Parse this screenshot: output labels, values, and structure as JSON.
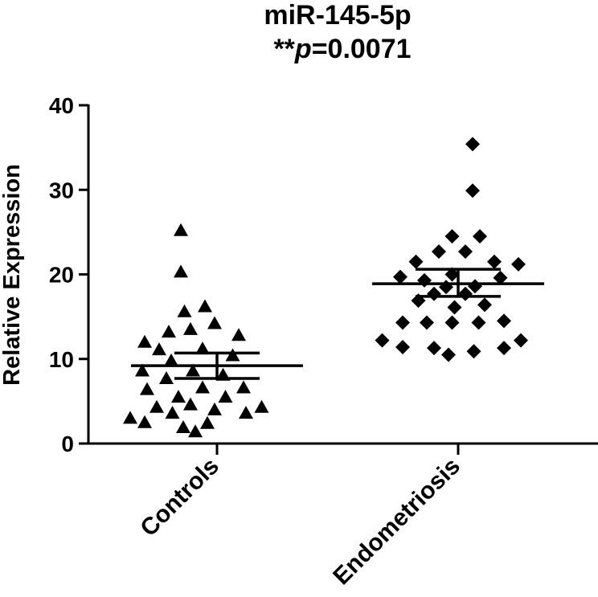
{
  "chart_data": {
    "type": "scatter",
    "title": "miR-145-5p",
    "subtitle": {
      "prefix": "**",
      "p_symbol": "p",
      "value_text": "=0.0071"
    },
    "xlabel": "",
    "ylabel": "Relative Expression",
    "ylim": [
      0,
      40
    ],
    "yticks": [
      0,
      10,
      20,
      30,
      40
    ],
    "grid": false,
    "legend": "none",
    "categories": [
      "Controls",
      "Endometriosis"
    ],
    "series": [
      {
        "name": "Controls",
        "marker": "triangle",
        "mean": 9.2,
        "sem_low": 7.7,
        "sem_high": 10.7,
        "points": [
          {
            "x": -0.3,
            "y": 25.2
          },
          {
            "x": -0.3,
            "y": 20.3
          },
          {
            "x": -0.1,
            "y": 16.2
          },
          {
            "x": -0.27,
            "y": 15.6
          },
          {
            "x": -0.4,
            "y": 13.2
          },
          {
            "x": -0.22,
            "y": 13.5
          },
          {
            "x": -0.02,
            "y": 14.2
          },
          {
            "x": 0.18,
            "y": 12.8
          },
          {
            "x": -0.6,
            "y": 12.0
          },
          {
            "x": -0.48,
            "y": 11.1
          },
          {
            "x": -0.12,
            "y": 11.2
          },
          {
            "x": 0.13,
            "y": 10.4
          },
          {
            "x": -0.38,
            "y": 9.8
          },
          {
            "x": -0.62,
            "y": 8.6
          },
          {
            "x": -0.2,
            "y": 8.6
          },
          {
            "x": 0.05,
            "y": 8.1
          },
          {
            "x": -0.42,
            "y": 7.7
          },
          {
            "x": -0.12,
            "y": 6.6
          },
          {
            "x": 0.22,
            "y": 6.6
          },
          {
            "x": -0.58,
            "y": 6.4
          },
          {
            "x": -0.32,
            "y": 5.5
          },
          {
            "x": 0.07,
            "y": 5.5
          },
          {
            "x": -0.22,
            "y": 4.6
          },
          {
            "x": -0.5,
            "y": 4.3
          },
          {
            "x": 0.37,
            "y": 4.3
          },
          {
            "x": -0.02,
            "y": 4.0
          },
          {
            "x": -0.37,
            "y": 3.6
          },
          {
            "x": 0.24,
            "y": 3.6
          },
          {
            "x": -0.72,
            "y": 3.0
          },
          {
            "x": -0.6,
            "y": 2.5
          },
          {
            "x": -0.08,
            "y": 2.4
          },
          {
            "x": -0.28,
            "y": 1.9
          },
          {
            "x": -0.18,
            "y": 1.4
          }
        ]
      },
      {
        "name": "Endometriosis",
        "marker": "diamond",
        "mean": 18.9,
        "sem_low": 17.4,
        "sem_high": 20.6,
        "points": [
          {
            "x": 0.12,
            "y": 35.4
          },
          {
            "x": 0.12,
            "y": 29.9
          },
          {
            "x": -0.05,
            "y": 24.5
          },
          {
            "x": 0.18,
            "y": 24.5
          },
          {
            "x": -0.16,
            "y": 22.7
          },
          {
            "x": 0.06,
            "y": 22.7
          },
          {
            "x": -0.35,
            "y": 21.5
          },
          {
            "x": 0.3,
            "y": 21.5
          },
          {
            "x": 0.5,
            "y": 21.2
          },
          {
            "x": -0.48,
            "y": 19.7
          },
          {
            "x": -0.05,
            "y": 20.0
          },
          {
            "x": 0.35,
            "y": 19.6
          },
          {
            "x": -0.28,
            "y": 19.3
          },
          {
            "x": -0.1,
            "y": 18.5
          },
          {
            "x": 0.14,
            "y": 18.6
          },
          {
            "x": -0.2,
            "y": 17.7
          },
          {
            "x": 0.06,
            "y": 17.7
          },
          {
            "x": -0.33,
            "y": 16.9
          },
          {
            "x": 0.22,
            "y": 16.4
          },
          {
            "x": -0.03,
            "y": 16.1
          },
          {
            "x": -0.46,
            "y": 14.3
          },
          {
            "x": -0.26,
            "y": 14.3
          },
          {
            "x": -0.05,
            "y": 14.3
          },
          {
            "x": 0.17,
            "y": 14.3
          },
          {
            "x": 0.38,
            "y": 14.5
          },
          {
            "x": -0.63,
            "y": 12.2
          },
          {
            "x": 0.52,
            "y": 12.2
          },
          {
            "x": -0.46,
            "y": 11.4
          },
          {
            "x": -0.2,
            "y": 11.3
          },
          {
            "x": 0.13,
            "y": 10.9
          },
          {
            "x": 0.38,
            "y": 11.3
          },
          {
            "x": -0.08,
            "y": 10.5
          }
        ]
      }
    ]
  }
}
